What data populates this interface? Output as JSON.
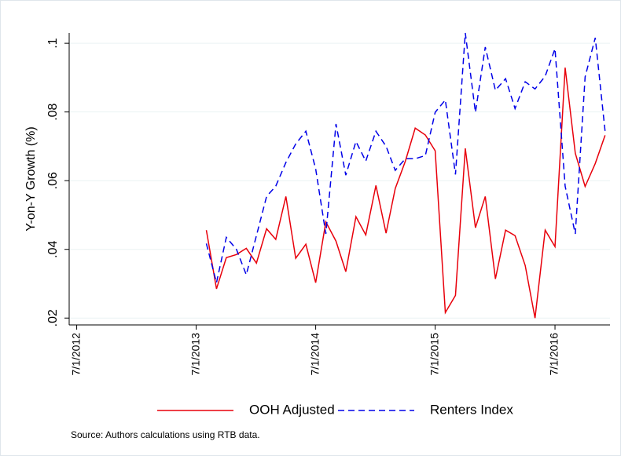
{
  "chart_data": {
    "type": "line",
    "y_label": "Y-on-Y Growth (%)",
    "source": "Source: Authors calculations using RTB data.",
    "x": [
      "8/1/2013",
      "9/1/2013",
      "10/1/2013",
      "11/1/2013",
      "12/1/2013",
      "1/1/2014",
      "2/1/2014",
      "3/1/2014",
      "4/1/2014",
      "5/1/2014",
      "6/1/2014",
      "7/1/2014",
      "8/1/2014",
      "9/1/2014",
      "10/1/2014",
      "11/1/2014",
      "12/1/2014",
      "1/1/2015",
      "2/1/2015",
      "3/1/2015",
      "4/1/2015",
      "5/1/2015",
      "6/1/2015",
      "7/1/2015",
      "8/1/2015",
      "9/1/2015",
      "10/1/2015",
      "11/1/2015",
      "12/1/2015",
      "1/1/2016",
      "2/1/2016",
      "3/1/2016",
      "4/1/2016",
      "5/1/2016",
      "6/1/2016",
      "7/1/2016",
      "8/1/2016",
      "9/1/2016",
      "10/1/2016",
      "11/1/2016",
      "12/1/2016"
    ],
    "series": [
      {
        "name": "OOH Adjusted",
        "color": "#e8000b",
        "dash": "solid",
        "values": [
          0.0456,
          0.0285,
          0.0376,
          0.0385,
          0.0403,
          0.036,
          0.046,
          0.0429,
          0.0554,
          0.0374,
          0.0415,
          0.0303,
          0.048,
          0.0424,
          0.0335,
          0.0495,
          0.0442,
          0.0586,
          0.0447,
          0.0577,
          0.0657,
          0.0753,
          0.0733,
          0.0687,
          0.0216,
          0.0266,
          0.0694,
          0.0463,
          0.0554,
          0.0314,
          0.0456,
          0.044,
          0.0353,
          0.02,
          0.0456,
          0.0408,
          0.0929,
          0.068,
          0.0583,
          0.065,
          0.0732
        ]
      },
      {
        "name": "Renters Index",
        "color": "#0000e8",
        "dash": "dashed",
        "values": [
          0.0417,
          0.0303,
          0.0435,
          0.04,
          0.0326,
          0.044,
          0.0554,
          0.0584,
          0.0653,
          0.0707,
          0.0744,
          0.0634,
          0.0445,
          0.0765,
          0.0616,
          0.0714,
          0.0657,
          0.0744,
          0.07,
          0.063,
          0.0664,
          0.0664,
          0.0673,
          0.0799,
          0.0835,
          0.0618,
          0.103,
          0.0799,
          0.0989,
          0.0863,
          0.0897,
          0.081,
          0.0888,
          0.0867,
          0.0904,
          0.0984,
          0.0584,
          0.0445,
          0.0902,
          0.1016,
          0.0744
        ]
      }
    ],
    "xlim": [
      "6/8/2012",
      "12/16/2016"
    ],
    "xticks": [
      "7/1/2012",
      "7/1/2013",
      "7/1/2014",
      "7/1/2015",
      "7/1/2016"
    ],
    "ylim": [
      0.018,
      0.103
    ],
    "yticks": [
      {
        "value": 0.02,
        "label": ".02"
      },
      {
        "value": 0.04,
        "label": ".04"
      },
      {
        "value": 0.06,
        "label": ".06"
      },
      {
        "value": 0.08,
        "label": ".08"
      },
      {
        "value": 0.1,
        "label": ".1"
      }
    ],
    "grid": true,
    "legend": "bottom"
  }
}
